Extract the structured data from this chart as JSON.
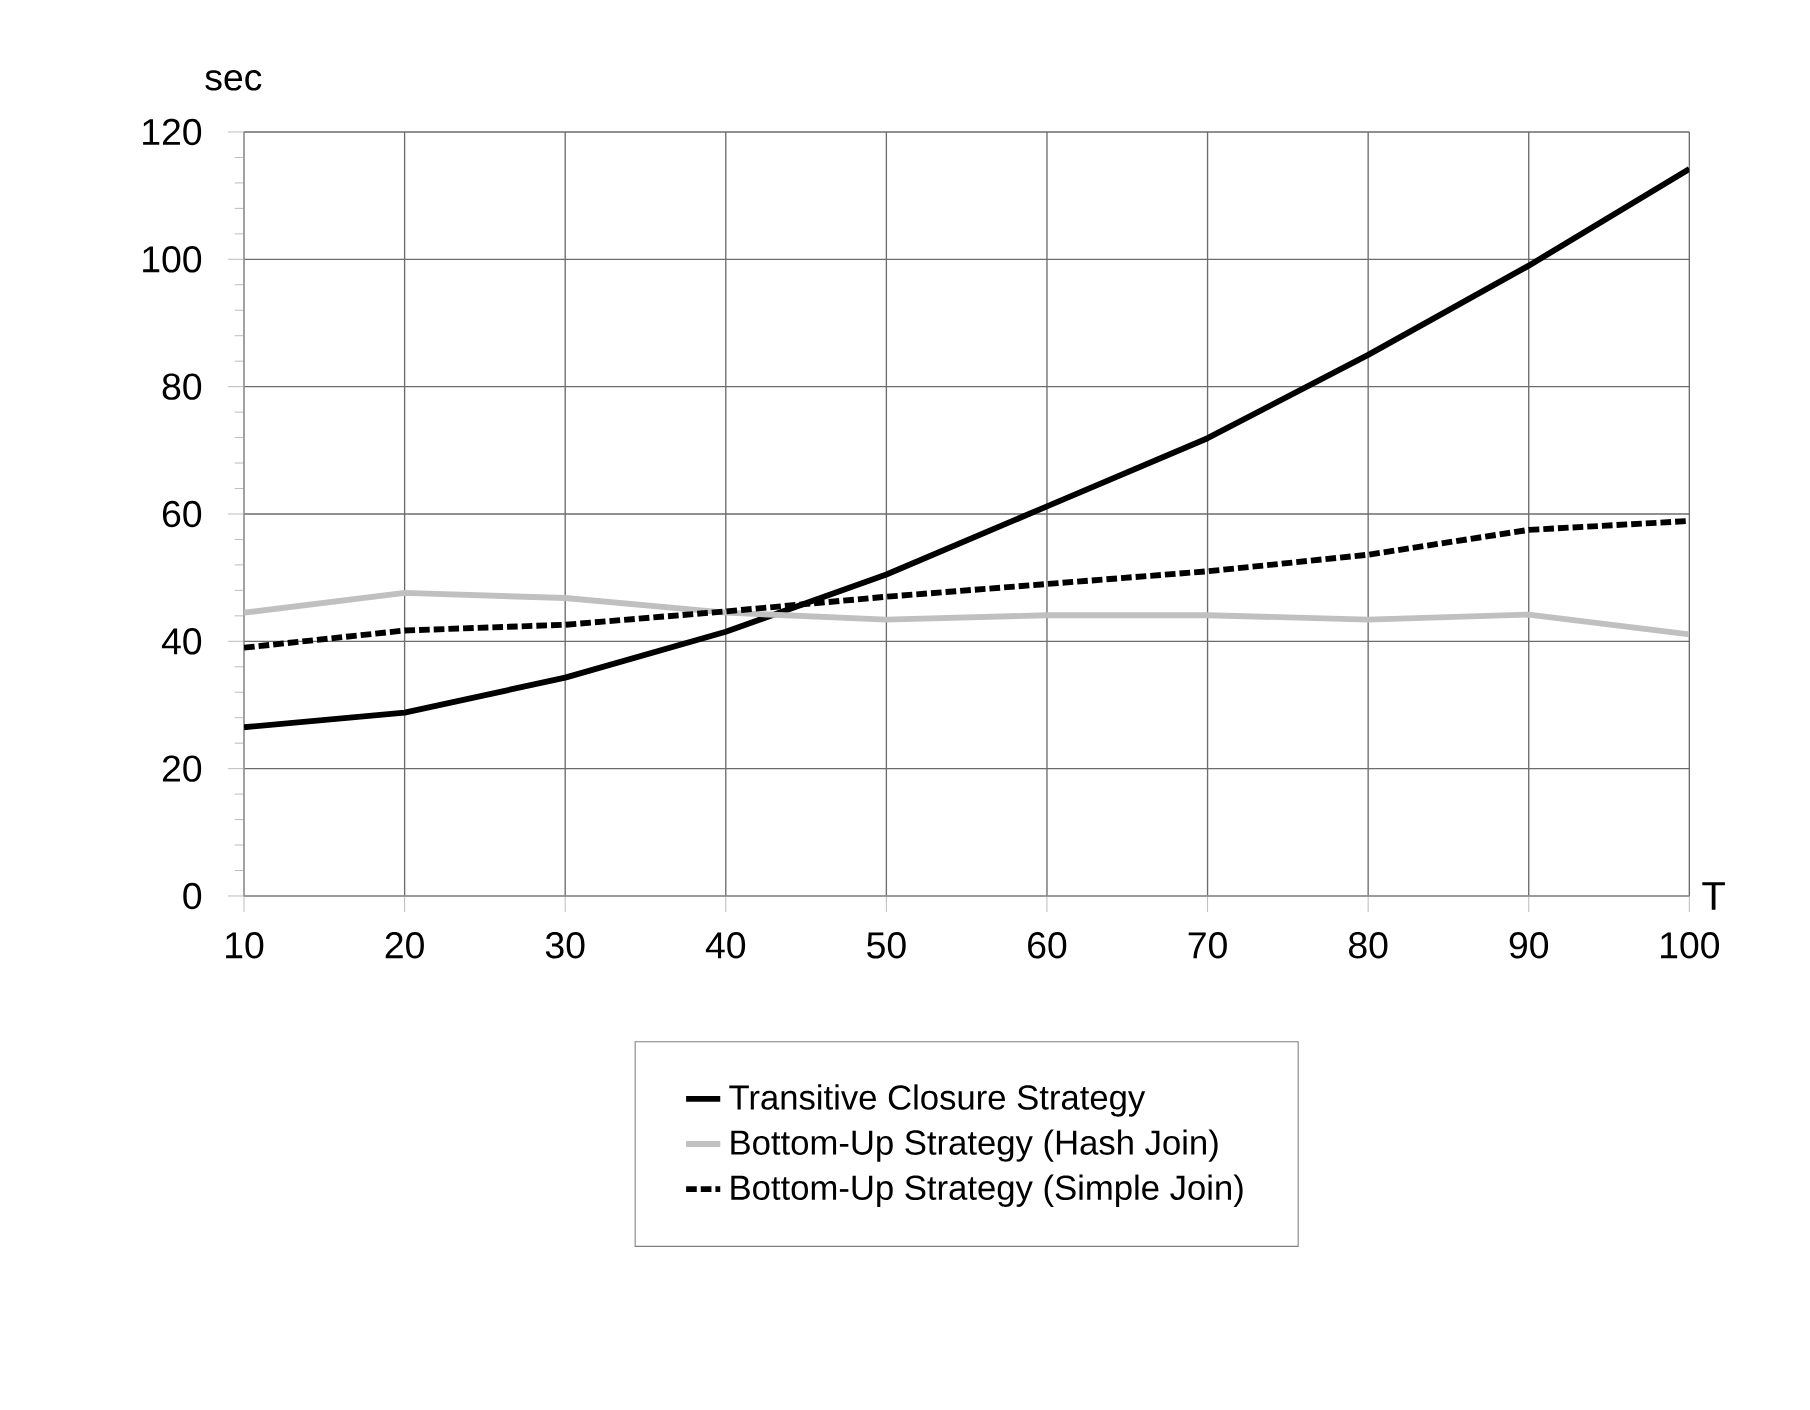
{
  "chart_data": {
    "type": "line",
    "xlabel": "T",
    "ylabel": "sec",
    "x": [
      10,
      20,
      30,
      40,
      50,
      60,
      70,
      80,
      90,
      100
    ],
    "xlim": [
      10,
      100
    ],
    "xticks": [
      10,
      20,
      30,
      40,
      50,
      60,
      70,
      80,
      90,
      100
    ],
    "ylim": [
      0,
      120
    ],
    "yticks": [
      0,
      20,
      40,
      60,
      80,
      100,
      120
    ],
    "grid": true,
    "legend": "bottom",
    "marker": "none",
    "series": [
      {
        "name": "Transitive Closure Strategy",
        "color": "#000000",
        "line_style": "solid",
        "values": [
          26.5,
          28.8,
          34.3,
          41.5,
          50.5,
          61.2,
          71.9,
          85,
          99,
          114.2
        ]
      },
      {
        "name": "Bottom-Up Strategy (Hash Join)",
        "color": "#c0c0c0",
        "line_style": "solid",
        "values": [
          44.5,
          47.6,
          46.8,
          44.5,
          43.4,
          44.1,
          44.1,
          43.4,
          44.2,
          41.1
        ]
      },
      {
        "name": "Bottom-Up Strategy (Simple Join)",
        "color": "#000000",
        "line_style": "dashed",
        "values": [
          39,
          41.7,
          42.6,
          44.7,
          47,
          49,
          51,
          53.6,
          57.5,
          58.9
        ]
      }
    ]
  }
}
